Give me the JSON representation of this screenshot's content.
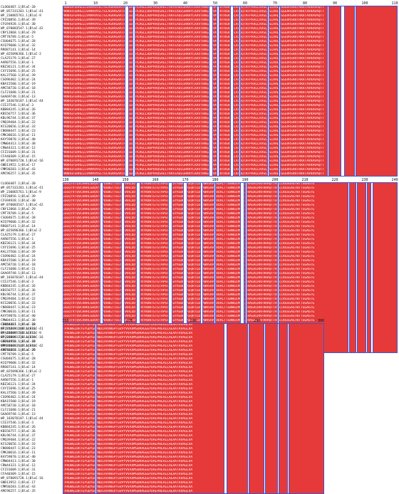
{
  "names": [
    "CLO66407.1|BlaC-20",
    "WP_057331201.1|BlaC-41",
    "WP_230865761.1|BlaC-9",
    "CPZ20856.1|BlaC-39",
    "CFG94928.1|BlaC-30",
    "WP_070083547.1|BlaC-42",
    "CNY12868.1|BlaC-29",
    "CMT78789.1|BlaC-5",
    "CSU04675.1|BlaC-28",
    "KCQ79600.1|BlaC-32",
    "RRO87141.1|BlaC-14",
    "WP_025096366.1|BlaC-2",
    "CLA25179.1|BlaC-27",
    "AAR07556.1|BlaC-1",
    "KBZ36121.1|BlaC-34",
    "CXY15696.1|BlaC-25",
    "KAL37560.1|BlaC-39",
    "CSO96402.1|BlaC-24",
    "KBA15500.1|BlaC-19",
    "AMC58720.1|BlaC-18",
    "CLF21680.1|BlaC-21",
    "GAA69748.1|BlaC-13",
    "WP_183076187.1|BlaC-44",
    "CCE37546.1|BlaC-3",
    "KBB84245.1|BlaC-26",
    "KBS56757.1|BlaC-36",
    "KBL96744.1|BlaC-37",
    "CMQ39484.1|BlaC-22",
    "KCS20656.1|BlaC-33",
    "CNO88447.1|BlaC-23",
    "CMK30616.1|BlaC-11",
    "KAY59870.1|BlaC-40",
    "CMW04413.1|BlaC-38",
    "CRW44321.1|BlaC-12",
    "CFZ31609.1|BlaC-31",
    "CFA40309.1|BlaC-15",
    "WP_070091720.1|BlaC-16",
    "GND13952.1|BlaC-17",
    "CMM30283.1|BlaC-43",
    "AMC96257.1|BlaC-35"
  ],
  "block1": {
    "ruler": [
      "1",
      "10",
      "20",
      "30",
      "40",
      "50",
      "60",
      "70",
      "80",
      "90",
      "100",
      "110"
    ],
    "consensus": "MRNRGFGRRELLVAMAVVSLTGCAGRAGAATPAAGLTPLRGLLADPAAQSAELTRRFEADLGRRRYLAAVTHHEAFAPLRVTRGRTALAQAQTAFPAALLAVGLDSIAALTGGGVRSRRTRRATAVRAVAQTT"
  },
  "block2": {
    "ruler": [
      "130",
      "140",
      "150",
      "160",
      "170",
      "180",
      "190",
      "200",
      "210",
      "220",
      "230",
      "240"
    ],
    "consensus": "SGGQTVTQVLHHRLGDQVTLPDGWGTTGSTQAAHLDDTLTKYRDWTGTGTAPGSTAGYAGDDTAEQRTLDTAWHSRAPVDALTTGRWGCMLALTRAGALRRFRHAQTTHGLCRGSGAGTWTTSGAGTG"
  },
  "block3": {
    "ruler": [
      "260",
      "270",
      "280",
      "290",
      "300"
    ],
    "consensus": "FPADWGIDRTGYGDYGRANDIAVVWSPTGVPYVVAVMSDRAGGGYDAEPREALLAEAATAVAGLVA"
  }
}
